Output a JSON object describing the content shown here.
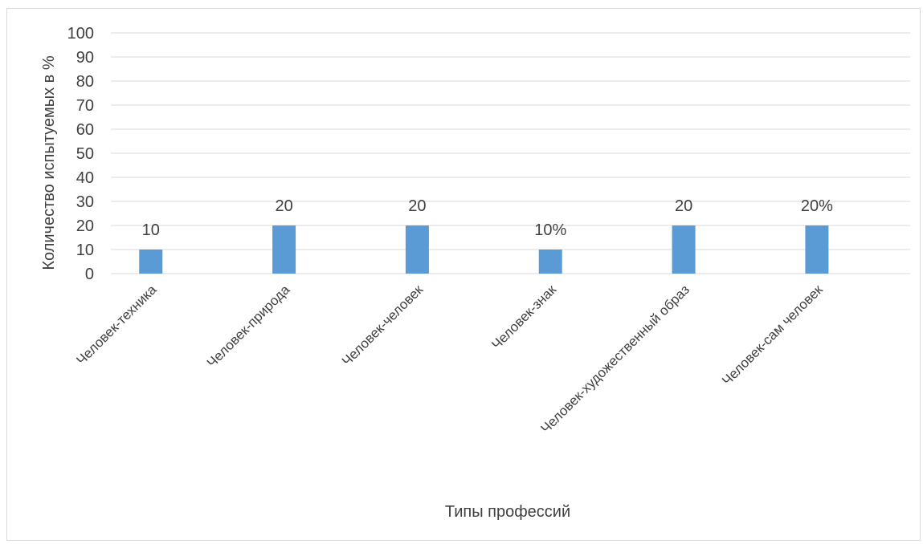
{
  "chart_data": {
    "type": "bar",
    "categories": [
      "Человек-техника",
      "Человек-природа",
      "Человек-человек",
      "Человек-знак",
      "Человек-художественный образ",
      "Человек-сам человек"
    ],
    "values": [
      10,
      20,
      20,
      10,
      20,
      20
    ],
    "data_labels": [
      "10",
      "20",
      "20",
      "10%",
      "20",
      "20%"
    ],
    "title": "",
    "xlabel": "Типы профессий",
    "ylabel": "Количество испытуемых в %",
    "ylim": [
      0,
      100
    ],
    "yticks": [
      0,
      10,
      20,
      30,
      40,
      50,
      60,
      70,
      80,
      90,
      100
    ],
    "grid": true,
    "legend": "none",
    "bar_color": "#5b9bd5",
    "grid_color": "#d9d9d9",
    "text_color": "#404040"
  }
}
